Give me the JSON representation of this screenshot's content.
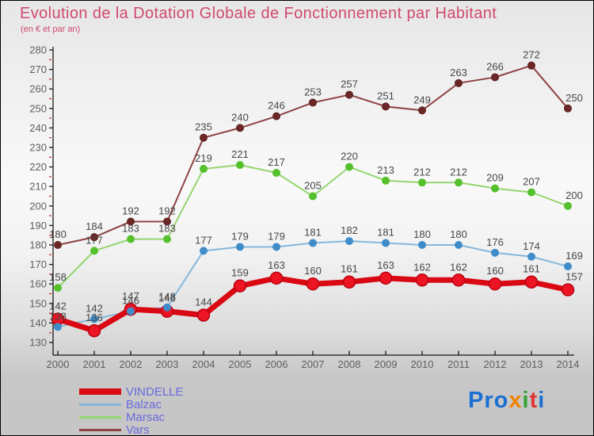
{
  "title": "Evolution de la Dotation Globale de Fonctionnement par Habitant",
  "subtitle": "(en € et par an)",
  "title_color": "#d04a6e",
  "chart_data": {
    "type": "line",
    "title": "Evolution de la Dotation Globale de Fonctionnement par Habitant",
    "subtitle": "(en € et par an)",
    "categories": [
      "2000",
      "2001",
      "2002",
      "2003",
      "2004",
      "2005",
      "2006",
      "2007",
      "2008",
      "2009",
      "2010",
      "2011",
      "2012",
      "2013",
      "2014"
    ],
    "ylim": [
      130,
      280
    ],
    "y_tick_step": 10,
    "y_ticks": [
      130,
      140,
      150,
      160,
      170,
      180,
      190,
      200,
      210,
      220,
      230,
      240,
      250,
      260,
      270,
      280
    ],
    "grid": false,
    "point_labels": true,
    "legend_position": "bottom-left",
    "axis_color": "#1a1a1a",
    "axis_text_color": "#5f5f5f",
    "point_label_color": "#474747",
    "minor_tick_color": "#cc2222",
    "series": [
      {
        "name": "VINDELLE",
        "color": "#e00812",
        "line_color": "#d90812",
        "dot_color": "#ed1423",
        "dot_edge": "#b80410",
        "line_width": 7,
        "values": [
          142,
          136,
          147,
          146,
          144,
          159,
          163,
          160,
          161,
          163,
          162,
          162,
          160,
          161,
          157
        ]
      },
      {
        "name": "Balzac",
        "color": "#85b7da",
        "line_color": "#85b7da",
        "dot_color": "#3f8cc9",
        "dot_edge": "#3f8cc9",
        "line_width": 2,
        "values": [
          138,
          142,
          146,
          148,
          177,
          179,
          179,
          181,
          182,
          181,
          180,
          180,
          176,
          174,
          169
        ]
      },
      {
        "name": "Marsac",
        "color": "#96d671",
        "line_color": "#96d671",
        "dot_color": "#54c02c",
        "dot_edge": "#54c02c",
        "line_width": 2,
        "values": [
          158,
          177,
          183,
          183,
          219,
          221,
          217,
          205,
          220,
          213,
          212,
          212,
          209,
          207,
          200
        ]
      },
      {
        "name": "Vars",
        "color": "#8e4343",
        "line_color": "#8e4343",
        "dot_color": "#6e2727",
        "dot_edge": "#5c1f1f",
        "line_width": 2,
        "values": [
          180,
          184,
          192,
          192,
          235,
          240,
          246,
          253,
          257,
          251,
          249,
          263,
          266,
          272,
          250
        ]
      }
    ]
  },
  "legend": {
    "items": [
      "VINDELLE",
      "Balzac",
      "Marsac",
      "Vars"
    ],
    "text_color": "#6a6ade"
  },
  "logo": {
    "text": "Proxiti",
    "letters": [
      {
        "char": "P",
        "color": "#1b6ed2"
      },
      {
        "char": "r",
        "color": "#1b6ed2"
      },
      {
        "char": "o",
        "color": "#1b6ed2"
      },
      {
        "char": "x",
        "color": "#f08200"
      },
      {
        "char": "i",
        "color": "#35a235"
      },
      {
        "char": "t",
        "color": "#e03535"
      },
      {
        "char": "i",
        "color": "#1b6ed2"
      }
    ]
  }
}
